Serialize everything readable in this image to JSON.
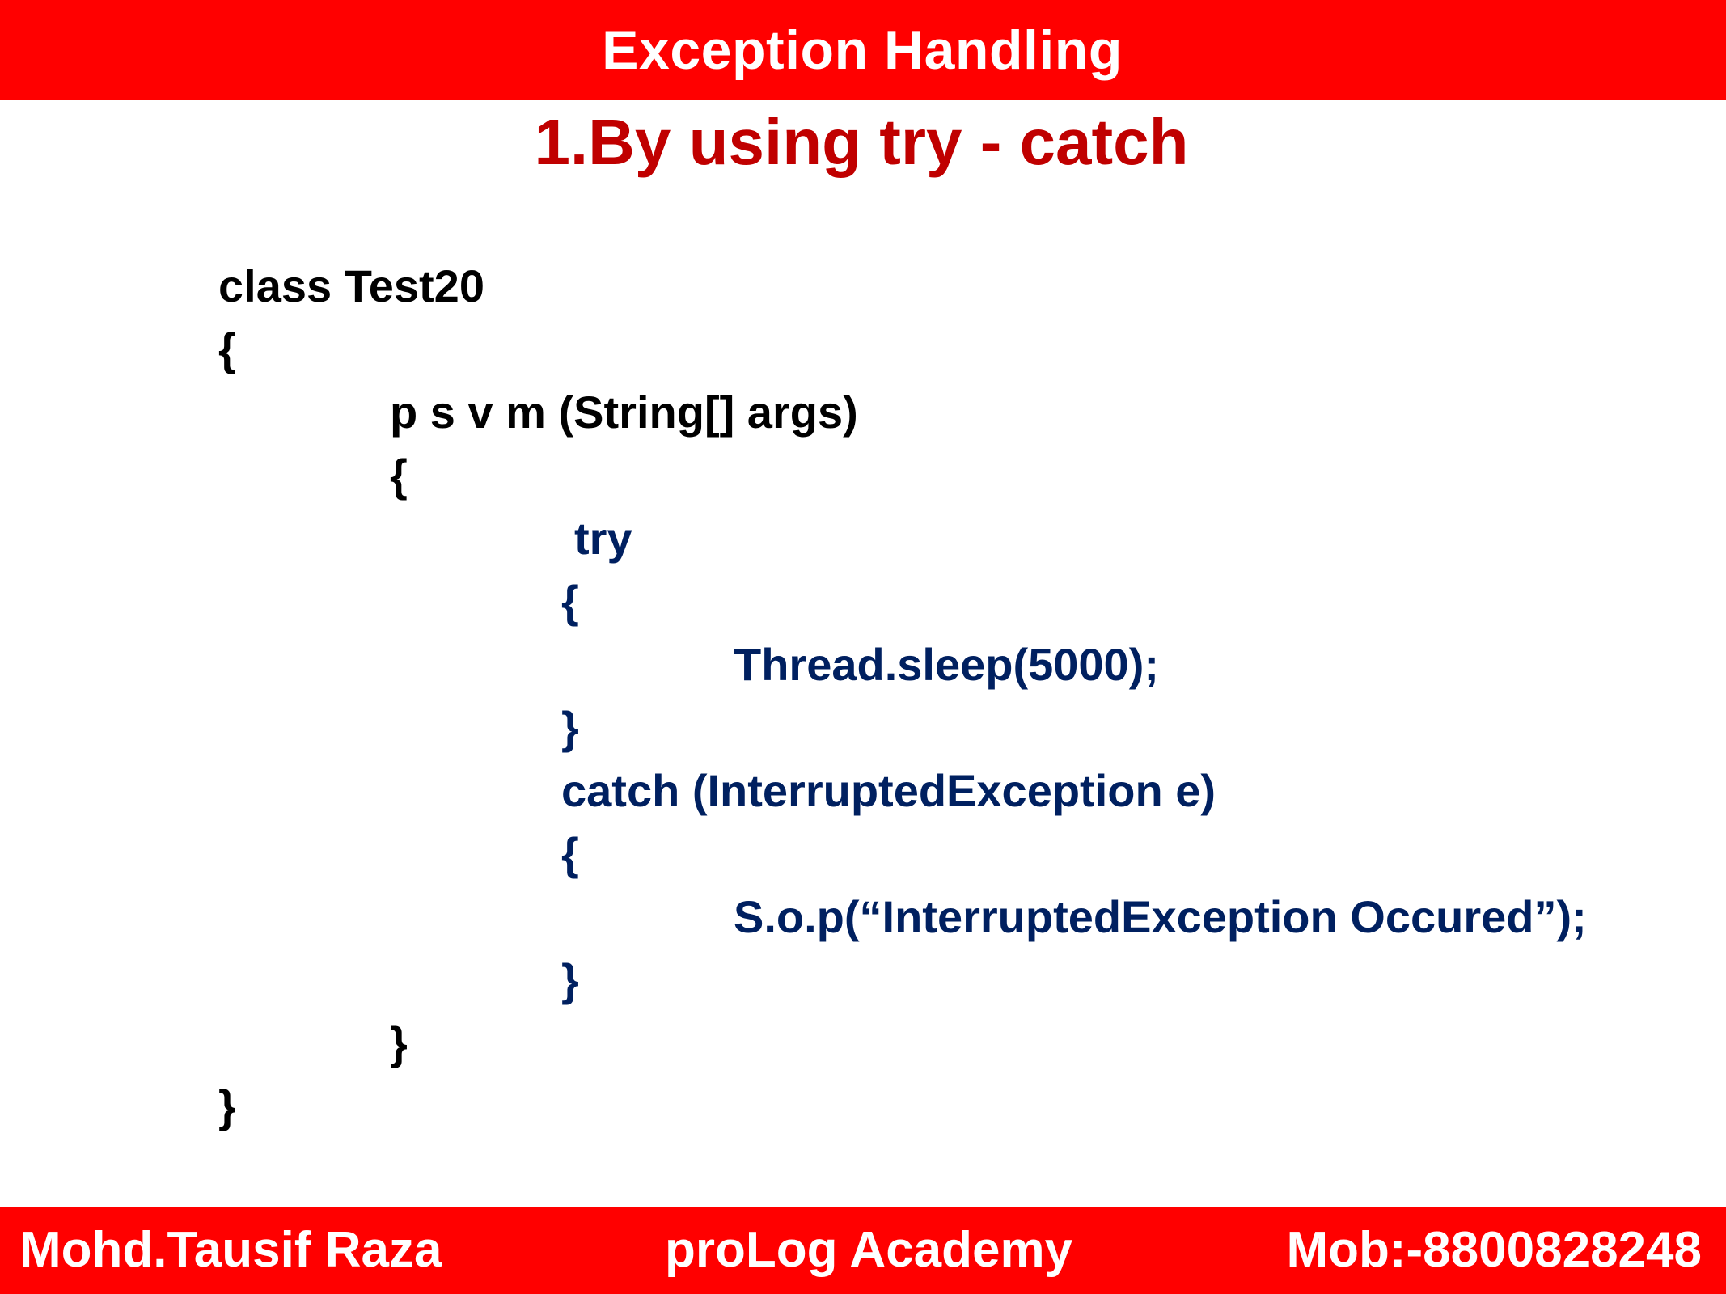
{
  "header": {
    "title": "Exception Handling"
  },
  "subtitle": "1.By using try - catch",
  "code": {
    "lines": [
      "class Test20",
      "{",
      "p s v m (String[] args)",
      "{",
      "try",
      "{",
      "Thread.sleep(5000);",
      "}",
      "catch (InterruptedException e)",
      "{",
      "S.o.p(“InterruptedException Occured”);",
      "}",
      "}",
      "}"
    ],
    "colors": {
      "outer": "#000000",
      "inner": "#002060"
    }
  },
  "footer": {
    "author": "Mohd.Tausif Raza",
    "academy": "proLog Academy",
    "mobile": "Mob:-8800828248"
  },
  "colors": {
    "banner": "#ff0000",
    "subtitle": "#c00000"
  }
}
